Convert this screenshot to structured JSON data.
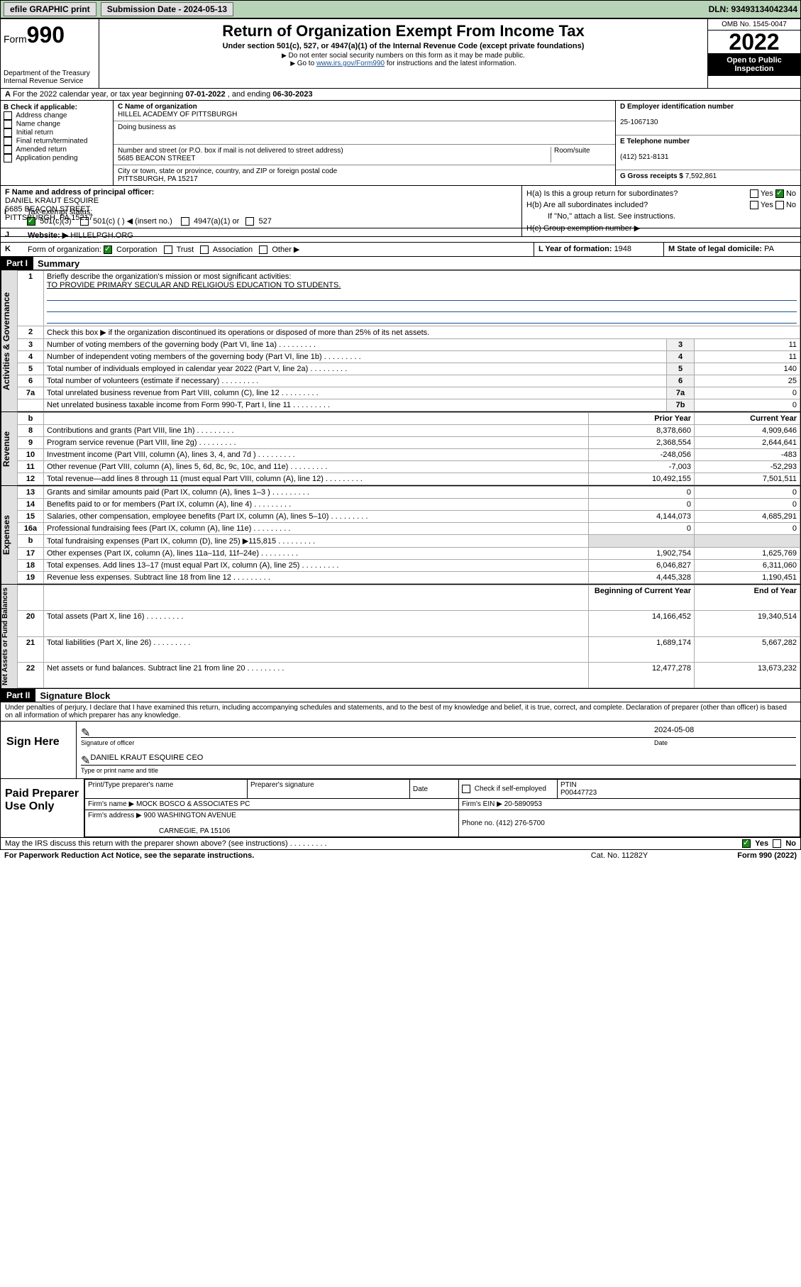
{
  "topbar": {
    "print": "efile GRAPHIC print",
    "sub_label": "Submission Date - ",
    "sub_date": "2024-05-13",
    "dln": "DLN: 93493134042344"
  },
  "header": {
    "form_prefix": "Form",
    "form_num": "990",
    "dept": "Department of the Treasury",
    "irs": "Internal Revenue Service",
    "title": "Return of Organization Exempt From Income Tax",
    "sub1": "Under section 501(c), 527, or 4947(a)(1) of the Internal Revenue Code (except private foundations)",
    "sub2": "Do not enter social security numbers on this form as it may be made public.",
    "sub3_pre": "Go to ",
    "sub3_link": "www.irs.gov/Form990",
    "sub3_post": " for instructions and the latest information.",
    "omb": "OMB No. 1545-0047",
    "year": "2022",
    "open": "Open to Public Inspection"
  },
  "row_a": {
    "label": "A",
    "text_pre": "For the 2022 calendar year, or tax year beginning ",
    "begin": "07-01-2022",
    "text_mid": " , and ending ",
    "end": "06-30-2023"
  },
  "section_b": {
    "b_label": "B Check if applicable:",
    "b_opts": [
      "Address change",
      "Name change",
      "Initial return",
      "Final return/terminated",
      "Amended return",
      "Application pending"
    ],
    "c_label": "C Name of organization",
    "c_name": "HILLEL ACADEMY OF PITTSBURGH",
    "dba": "Doing business as",
    "addr_label": "Number and street (or P.O. box if mail is not delivered to street address)",
    "addr": "5685 BEACON STREET",
    "room": "Room/suite",
    "city_label": "City or town, state or province, country, and ZIP or foreign postal code",
    "city": "PITTSBURGH, PA  15217",
    "d_label": "D Employer identification number",
    "d_val": "25-1067130",
    "e_label": "E Telephone number",
    "e_val": "(412) 521-8131",
    "g_label": "G Gross receipts $ ",
    "g_val": "7,592,861"
  },
  "section_f": {
    "f_label": "F  Name and address of principal officer:",
    "f_name": "DANIEL KRAUT ESQUIRE",
    "f_addr1": "5685 BEACON STREET",
    "f_addr2": "PITTSBURGH, PA  15217",
    "ha_label": "H(a)  Is this a group return for subordinates?",
    "hb_label": "H(b)  Are all subordinates included?",
    "hb_note": "If \"No,\" attach a list. See instructions.",
    "hc_label": "H(c)  Group exemption number ▶",
    "yes": "Yes",
    "no": "No"
  },
  "row_i": {
    "i": "I",
    "label": "Tax-exempt status:",
    "opt1": "501(c)(3)",
    "opt2": "501(c) (    ) ◀ (insert no.)",
    "opt3": "4947(a)(1) or",
    "opt4": "527"
  },
  "row_j": {
    "j": "J",
    "label": "Website: ▶",
    "val": " HILLELPGH.ORG"
  },
  "row_k": {
    "k": "K",
    "label": "Form of organization:",
    "opts": [
      "Corporation",
      "Trust",
      "Association",
      "Other ▶"
    ],
    "l_label": "L Year of formation: ",
    "l_val": "1948",
    "m_label": "M State of legal domicile: ",
    "m_val": "PA"
  },
  "part1": {
    "tag": "Part I",
    "title": "Summary",
    "line1_label": "Briefly describe the organization's mission or most significant activities:",
    "line1_val": "TO PROVIDE PRIMARY SECULAR AND RELIGIOUS EDUCATION TO STUDENTS.",
    "line2": "Check this box ▶        if the organization discontinued its operations or disposed of more than 25% of its net assets.",
    "governance_rows": [
      {
        "n": "3",
        "d": "Number of voting members of the governing body (Part VI, line 1a)",
        "ln": "3",
        "v": "11"
      },
      {
        "n": "4",
        "d": "Number of independent voting members of the governing body (Part VI, line 1b)",
        "ln": "4",
        "v": "11"
      },
      {
        "n": "5",
        "d": "Total number of individuals employed in calendar year 2022 (Part V, line 2a)",
        "ln": "5",
        "v": "140"
      },
      {
        "n": "6",
        "d": "Total number of volunteers (estimate if necessary)",
        "ln": "6",
        "v": "25"
      },
      {
        "n": "7a",
        "d": "Total unrelated business revenue from Part VIII, column (C), line 12",
        "ln": "7a",
        "v": "0"
      },
      {
        "n": "",
        "d": "Net unrelated business taxable income from Form 990-T, Part I, line 11",
        "ln": "7b",
        "v": "0"
      }
    ],
    "col_prior": "Prior Year",
    "col_current": "Current Year",
    "revenue_rows": [
      {
        "n": "8",
        "d": "Contributions and grants (Part VIII, line 1h)",
        "p": "8,378,660",
        "c": "4,909,646"
      },
      {
        "n": "9",
        "d": "Program service revenue (Part VIII, line 2g)",
        "p": "2,368,554",
        "c": "2,644,641"
      },
      {
        "n": "10",
        "d": "Investment income (Part VIII, column (A), lines 3, 4, and 7d )",
        "p": "-248,056",
        "c": "-483"
      },
      {
        "n": "11",
        "d": "Other revenue (Part VIII, column (A), lines 5, 6d, 8c, 9c, 10c, and 11e)",
        "p": "-7,003",
        "c": "-52,293"
      },
      {
        "n": "12",
        "d": "Total revenue—add lines 8 through 11 (must equal Part VIII, column (A), line 12)",
        "p": "10,492,155",
        "c": "7,501,511"
      }
    ],
    "expense_rows": [
      {
        "n": "13",
        "d": "Grants and similar amounts paid (Part IX, column (A), lines 1–3 )",
        "p": "0",
        "c": "0"
      },
      {
        "n": "14",
        "d": "Benefits paid to or for members (Part IX, column (A), line 4)",
        "p": "0",
        "c": "0"
      },
      {
        "n": "15",
        "d": "Salaries, other compensation, employee benefits (Part IX, column (A), lines 5–10)",
        "p": "4,144,073",
        "c": "4,685,291"
      },
      {
        "n": "16a",
        "d": "Professional fundraising fees (Part IX, column (A), line 11e)",
        "p": "0",
        "c": "0"
      },
      {
        "n": "b",
        "d": "Total fundraising expenses (Part IX, column (D), line 25) ▶115,815",
        "p": "",
        "c": ""
      },
      {
        "n": "17",
        "d": "Other expenses (Part IX, column (A), lines 11a–11d, 11f–24e)",
        "p": "1,902,754",
        "c": "1,625,769"
      },
      {
        "n": "18",
        "d": "Total expenses. Add lines 13–17 (must equal Part IX, column (A), line 25)",
        "p": "6,046,827",
        "c": "6,311,060"
      },
      {
        "n": "19",
        "d": "Revenue less expenses. Subtract line 18 from line 12",
        "p": "4,445,328",
        "c": "1,190,451"
      }
    ],
    "col_begin": "Beginning of Current Year",
    "col_end": "End of Year",
    "net_rows": [
      {
        "n": "20",
        "d": "Total assets (Part X, line 16)",
        "p": "14,166,452",
        "c": "19,340,514"
      },
      {
        "n": "21",
        "d": "Total liabilities (Part X, line 26)",
        "p": "1,689,174",
        "c": "5,667,282"
      },
      {
        "n": "22",
        "d": "Net assets or fund balances. Subtract line 21 from line 20",
        "p": "12,477,278",
        "c": "13,673,232"
      }
    ],
    "vert_gov": "Activities & Governance",
    "vert_rev": "Revenue",
    "vert_exp": "Expenses",
    "vert_net": "Net Assets or Fund Balances"
  },
  "part2": {
    "tag": "Part II",
    "title": "Signature Block",
    "decl": "Under penalties of perjury, I declare that I have examined this return, including accompanying schedules and statements, and to the best of my knowledge and belief, it is true, correct, and complete. Declaration of preparer (other than officer) is based on all information of which preparer has any knowledge.",
    "sign_here": "Sign Here",
    "sig_officer": "Signature of officer",
    "sig_date_val": "2024-05-08",
    "sig_date": "Date",
    "officer_name": "DANIEL KRAUT ESQUIRE  CEO",
    "type_name": "Type or print name and title",
    "paid_prep": "Paid Preparer Use Only",
    "prep_name_label": "Print/Type preparer's name",
    "prep_sig_label": "Preparer's signature",
    "date_label": "Date",
    "check_if": "Check          if self-employed",
    "ptin_label": "PTIN",
    "ptin": "P00447723",
    "firm_name_label": "Firm's name     ▶ ",
    "firm_name": "MOCK BOSCO & ASSOCIATES PC",
    "firm_ein_label": "Firm's EIN ▶ ",
    "firm_ein": "20-5890953",
    "firm_addr_label": "Firm's address ▶ ",
    "firm_addr1": "900 WASHINGTON AVENUE",
    "firm_addr2": "CARNEGIE, PA  15106",
    "phone_label": "Phone no. ",
    "phone": "(412) 276-5700"
  },
  "footer": {
    "discuss": "May the IRS discuss this return with the preparer shown above? (see instructions)",
    "yes": "Yes",
    "no": "No",
    "paperwork": "For Paperwork Reduction Act Notice, see the separate instructions.",
    "cat": "Cat. No. 11282Y",
    "form": "Form 990 (2022)"
  }
}
